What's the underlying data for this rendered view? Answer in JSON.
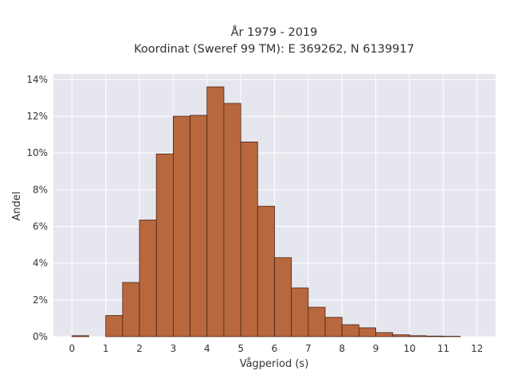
{
  "chart_data": {
    "type": "bar",
    "title_lines": [
      "År 1979 - 2019",
      "Koordinat (Sweref 99 TM): E 369262, N 6139917"
    ],
    "xlabel": "Vågperiod (s)",
    "ylabel": "Andel",
    "x_bin_width": 0.5,
    "bins": [
      {
        "x0": 0.0,
        "x1": 0.5,
        "value": 0.05
      },
      {
        "x0": 0.5,
        "x1": 1.0,
        "value": 0.0
      },
      {
        "x0": 1.0,
        "x1": 1.5,
        "value": 1.15
      },
      {
        "x0": 1.5,
        "x1": 2.0,
        "value": 2.95
      },
      {
        "x0": 2.0,
        "x1": 2.5,
        "value": 6.35
      },
      {
        "x0": 2.5,
        "x1": 3.0,
        "value": 9.95
      },
      {
        "x0": 3.0,
        "x1": 3.5,
        "value": 12.0
      },
      {
        "x0": 3.5,
        "x1": 4.0,
        "value": 12.05
      },
      {
        "x0": 4.0,
        "x1": 4.5,
        "value": 13.6
      },
      {
        "x0": 4.5,
        "x1": 5.0,
        "value": 12.7
      },
      {
        "x0": 5.0,
        "x1": 5.5,
        "value": 10.6
      },
      {
        "x0": 5.5,
        "x1": 6.0,
        "value": 7.1
      },
      {
        "x0": 6.0,
        "x1": 6.5,
        "value": 4.3
      },
      {
        "x0": 6.5,
        "x1": 7.0,
        "value": 2.65
      },
      {
        "x0": 7.0,
        "x1": 7.5,
        "value": 1.6
      },
      {
        "x0": 7.5,
        "x1": 8.0,
        "value": 1.05
      },
      {
        "x0": 8.0,
        "x1": 8.5,
        "value": 0.65
      },
      {
        "x0": 8.5,
        "x1": 9.0,
        "value": 0.48
      },
      {
        "x0": 9.0,
        "x1": 9.5,
        "value": 0.22
      },
      {
        "x0": 9.5,
        "x1": 10.0,
        "value": 0.1
      },
      {
        "x0": 10.0,
        "x1": 10.5,
        "value": 0.05
      },
      {
        "x0": 10.5,
        "x1": 11.0,
        "value": 0.03
      },
      {
        "x0": 11.0,
        "x1": 11.5,
        "value": 0.02
      },
      {
        "x0": 11.5,
        "x1": 12.0,
        "value": 0.0
      }
    ],
    "xlim": [
      -0.55,
      12.55
    ],
    "ylim": [
      0,
      14.3
    ],
    "xticks": [
      0,
      1,
      2,
      3,
      4,
      5,
      6,
      7,
      8,
      9,
      10,
      11,
      12
    ],
    "yticks": [
      0,
      2,
      4,
      6,
      8,
      10,
      12,
      14
    ],
    "ytick_suffix": "%",
    "grid": true,
    "legend": "none",
    "colors": {
      "bar_fill": "#b8683f",
      "bar_edge": "#4a2414",
      "plot_background": "#e6e6ef",
      "grid": "#ffffff",
      "text": "#333333"
    }
  }
}
